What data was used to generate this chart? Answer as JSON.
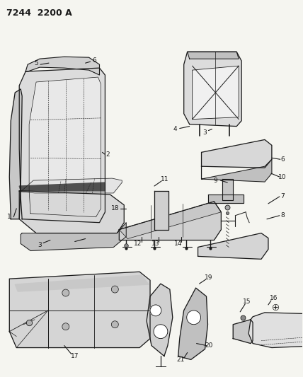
{
  "title": "7244  2200 A",
  "bg_color": "#f5f5f0",
  "line_color": "#1a1a1a",
  "label_fontsize": 6.5,
  "fig_width": 4.28,
  "fig_height": 5.33,
  "dpi": 100
}
